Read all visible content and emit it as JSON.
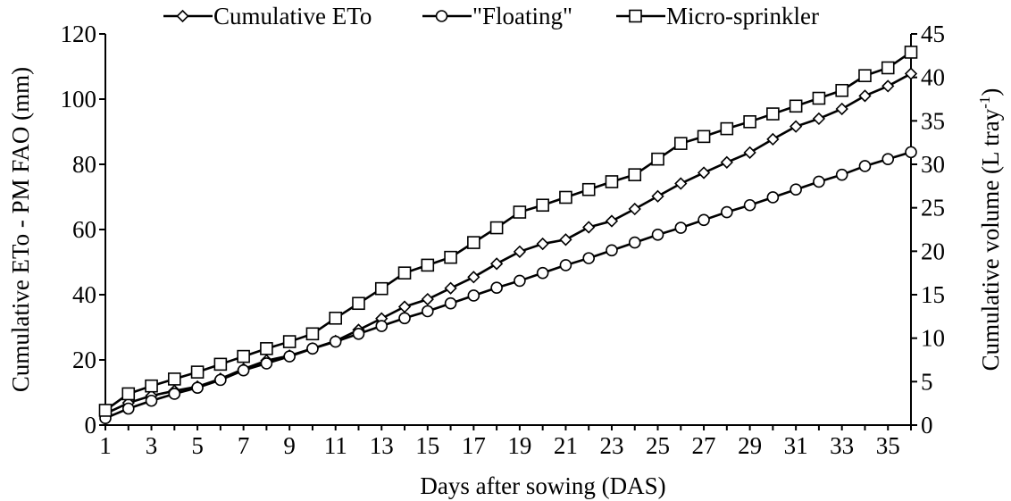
{
  "chart_data": {
    "type": "line",
    "xlabel": "Days after sowing (DAS)",
    "ylabel_left": "Cumulative ETo - PM FAO (mm)",
    "ylabel_right": "Cumulative volume (L tray",
    "ylabel_right_superscript": "-1",
    "ylabel_right_close": ")",
    "xlim": [
      1,
      36
    ],
    "ylim_left": [
      0,
      120
    ],
    "ylim_right": [
      0,
      45
    ],
    "x_ticks": [
      1,
      3,
      5,
      7,
      9,
      11,
      13,
      15,
      17,
      19,
      21,
      23,
      25,
      27,
      29,
      31,
      33,
      35
    ],
    "y_ticks_left": [
      0,
      20,
      40,
      60,
      80,
      100,
      120
    ],
    "y_ticks_right": [
      0,
      5,
      10,
      15,
      20,
      25,
      30,
      35,
      40,
      45
    ],
    "legend_position": "top",
    "x": [
      1,
      2,
      3,
      4,
      5,
      6,
      7,
      8,
      9,
      10,
      11,
      12,
      13,
      14,
      15,
      16,
      17,
      18,
      19,
      20,
      21,
      22,
      23,
      24,
      25,
      26,
      27,
      28,
      29,
      30,
      31,
      32,
      33,
      34,
      35,
      36
    ],
    "series": [
      {
        "name": "Cumulative ETo",
        "marker": "diamond",
        "axis": "left",
        "values": [
          3.5,
          6.8,
          9.0,
          10.5,
          11.8,
          14.2,
          17.2,
          19.8,
          21.3,
          23.5,
          25.8,
          29.2,
          32.7,
          36.3,
          38.6,
          42.0,
          45.4,
          49.5,
          53.2,
          55.6,
          56.9,
          60.7,
          62.6,
          66.3,
          70.2,
          74.1,
          77.4,
          80.6,
          83.6,
          87.7,
          91.6,
          94.0,
          97.0,
          101.0,
          104.0,
          107.8
        ]
      },
      {
        "name": "\"Floating\"",
        "marker": "circle",
        "axis": "right",
        "values": [
          0.8,
          1.9,
          2.8,
          3.6,
          4.3,
          5.2,
          6.3,
          7.1,
          7.9,
          8.8,
          9.6,
          10.5,
          11.4,
          12.3,
          13.1,
          14.0,
          14.9,
          15.8,
          16.6,
          17.5,
          18.4,
          19.2,
          20.1,
          21.0,
          21.9,
          22.7,
          23.6,
          24.5,
          25.3,
          26.2,
          27.1,
          28.0,
          28.8,
          29.8,
          30.6,
          31.4
        ]
      },
      {
        "name": "Micro-sprinkler",
        "marker": "square",
        "axis": "right",
        "values": [
          1.7,
          3.6,
          4.5,
          5.3,
          6.1,
          7.0,
          7.9,
          8.8,
          9.6,
          10.5,
          12.3,
          14.0,
          15.7,
          17.5,
          18.4,
          19.3,
          21.0,
          22.7,
          24.5,
          25.3,
          26.2,
          27.1,
          28.0,
          28.8,
          30.6,
          32.4,
          33.2,
          34.1,
          34.9,
          35.8,
          36.7,
          37.6,
          38.5,
          40.2,
          41.1,
          42.9
        ]
      }
    ]
  }
}
